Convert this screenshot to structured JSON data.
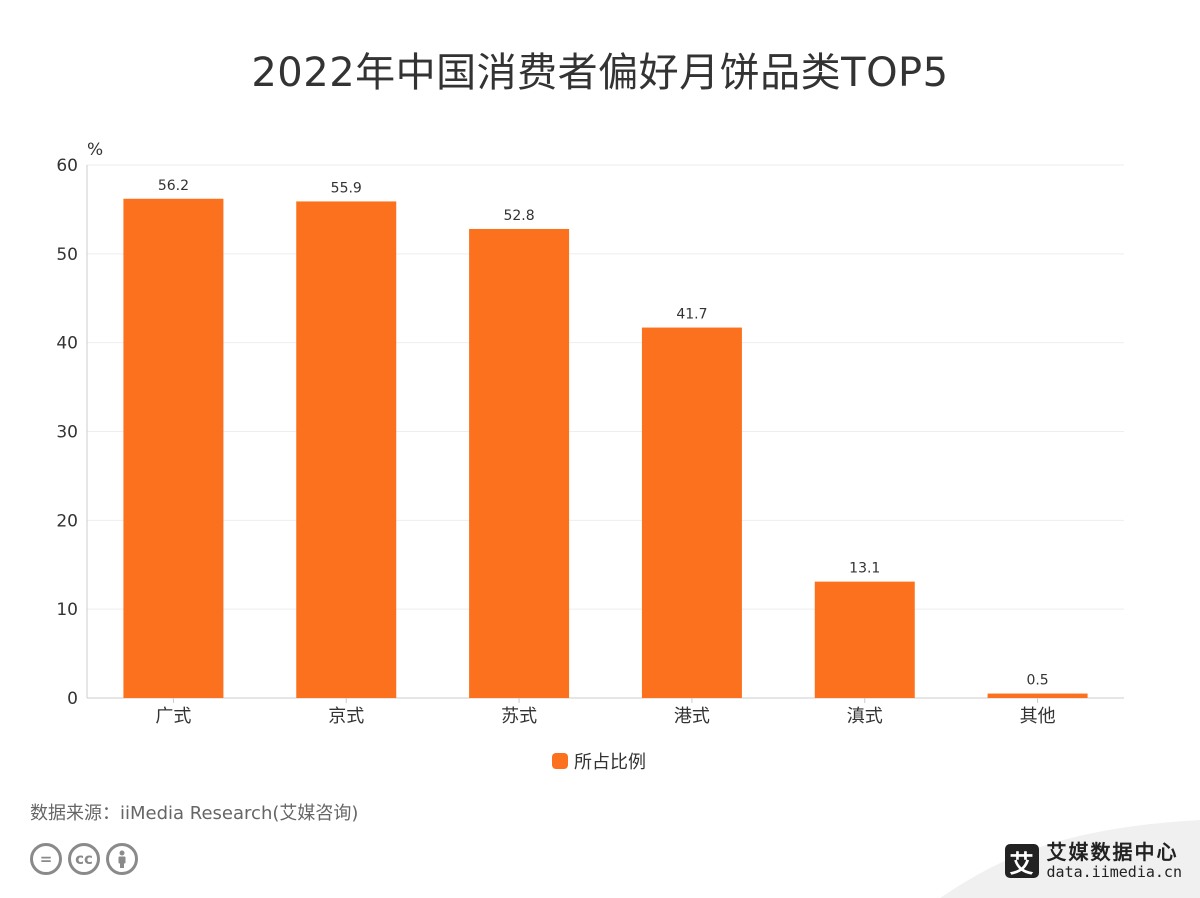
{
  "colors": {
    "bar": "#fc711d",
    "axis": "#cccccc",
    "grid": "#eeeeee",
    "text": "#333333"
  },
  "chart_data": {
    "type": "bar",
    "title": "2022年中国消费者偏好月饼品类TOP5",
    "ylabel": "%",
    "categories": [
      "广式",
      "京式",
      "苏式",
      "港式",
      "滇式",
      "其他"
    ],
    "series": [
      {
        "name": "所占比例",
        "values": [
          56.2,
          55.9,
          52.8,
          41.7,
          13.1,
          0.5
        ]
      }
    ],
    "ylim": [
      0,
      60
    ],
    "yticks": [
      0,
      10,
      20,
      30,
      40,
      50,
      60
    ],
    "grid": true,
    "legend": "bottom-center"
  },
  "footer": {
    "source": "数据来源：iiMedia Research(艾媒咨询)",
    "license_icons": [
      "equals-icon",
      "cc-icon",
      "person-icon"
    ],
    "cc_text": "cc"
  },
  "brand": {
    "mark": "艾",
    "name": "艾媒数据中心",
    "url": "data.iimedia.cn"
  }
}
